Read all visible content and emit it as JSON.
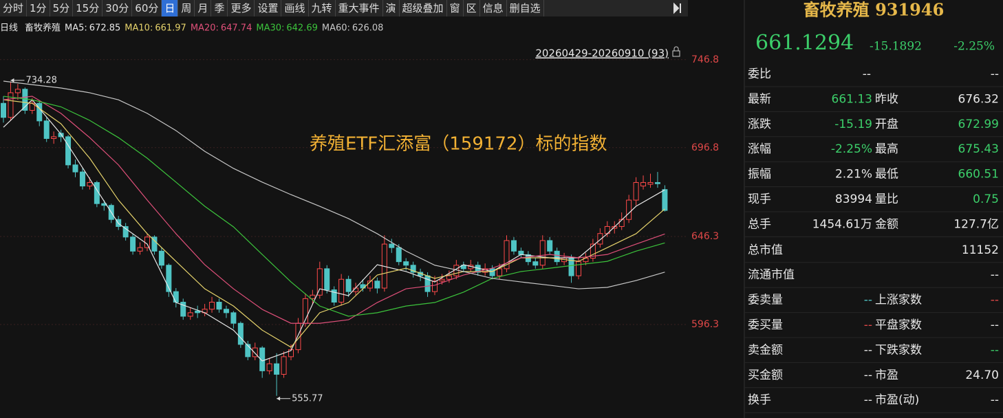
{
  "toolbar": [
    "分时",
    "1分",
    "5分",
    "15分",
    "30分",
    "60分",
    "日",
    "周",
    "月",
    "季",
    "更多",
    "设置",
    "画线",
    "九转",
    "重大事件",
    "演",
    "超级叠加",
    "窗",
    "区",
    "信息",
    "删自选"
  ],
  "legend": {
    "period": "日线",
    "name": "畜牧养殖"
  },
  "chart_data": {
    "type": "candlestick",
    "title": "养殖ETF汇添富（159172）标的指数",
    "range": "20260429-20260910 (93)",
    "ylim": [
      546.3,
      764.3
    ],
    "yticks": [
      596.3,
      646.3,
      696.8,
      746.8
    ],
    "max_label": 734.28,
    "min_label": 555.77,
    "ohlc": [
      [
        722,
        726,
        711,
        714
      ],
      [
        714,
        734.28,
        712,
        728
      ],
      [
        728,
        733,
        724,
        730
      ],
      [
        730,
        731,
        716,
        718
      ],
      [
        718,
        725,
        716,
        722
      ],
      [
        722,
        723,
        709,
        712
      ],
      [
        712,
        714,
        700,
        702
      ],
      [
        702,
        706,
        699,
        703
      ],
      [
        705,
        707,
        700,
        703
      ],
      [
        703,
        704,
        685,
        687
      ],
      [
        687,
        690,
        680,
        683
      ],
      [
        683,
        685,
        673,
        675
      ],
      [
        675,
        680,
        673,
        677
      ],
      [
        677,
        678,
        663,
        665
      ],
      [
        665,
        667,
        661,
        664
      ],
      [
        664,
        665,
        654,
        656
      ],
      [
        656,
        658,
        650,
        652
      ],
      [
        652,
        654,
        644,
        646
      ],
      [
        646,
        648,
        636,
        638
      ],
      [
        638,
        643,
        636,
        640
      ],
      [
        640,
        648,
        638,
        646
      ],
      [
        646,
        647,
        636,
        638
      ],
      [
        638,
        640,
        628,
        630
      ],
      [
        630,
        631,
        612,
        615
      ],
      [
        615,
        617,
        606,
        609
      ],
      [
        609,
        611,
        599,
        601
      ],
      [
        601,
        606,
        599,
        603
      ],
      [
        604,
        607,
        600,
        603
      ],
      [
        603,
        608,
        601,
        605
      ],
      [
        605,
        612,
        603,
        609
      ],
      [
        609,
        611,
        603,
        605
      ],
      [
        605,
        607,
        600,
        603
      ],
      [
        603,
        604,
        594,
        597
      ],
      [
        597,
        598,
        583,
        585
      ],
      [
        585,
        587,
        576,
        578
      ],
      [
        578,
        586,
        576,
        583
      ],
      [
        583,
        584,
        566,
        570
      ],
      [
        570,
        577,
        568,
        574
      ],
      [
        574,
        580,
        555.77,
        568
      ],
      [
        568,
        581,
        566,
        578
      ],
      [
        578,
        585,
        576,
        582
      ],
      [
        582,
        600,
        580,
        597
      ],
      [
        597,
        614,
        595,
        611
      ],
      [
        611,
        616,
        608,
        613
      ],
      [
        613,
        632,
        611,
        628
      ],
      [
        628,
        630,
        614,
        616
      ],
      [
        616,
        618,
        607,
        609
      ],
      [
        609,
        625,
        607,
        622
      ],
      [
        622,
        624,
        612,
        615
      ],
      [
        615,
        620,
        613,
        617
      ],
      [
        619,
        622,
        615,
        617
      ],
      [
        617,
        624,
        615,
        621
      ],
      [
        621,
        623,
        614,
        617
      ],
      [
        617,
        647,
        615,
        642
      ],
      [
        642,
        645,
        637,
        640
      ],
      [
        640,
        642,
        630,
        632
      ],
      [
        632,
        634,
        627,
        630
      ],
      [
        630,
        632,
        623,
        626
      ],
      [
        626,
        628,
        621,
        624
      ],
      [
        624,
        626,
        612,
        615
      ],
      [
        615,
        624,
        613,
        621
      ],
      [
        621,
        625,
        619,
        622
      ],
      [
        622,
        627,
        620,
        624
      ],
      [
        624,
        633,
        622,
        630
      ],
      [
        630,
        632,
        626,
        628
      ],
      [
        628,
        633,
        626,
        630
      ],
      [
        630,
        632,
        624,
        626
      ],
      [
        626,
        631,
        624,
        628
      ],
      [
        628,
        630,
        622,
        624
      ],
      [
        624,
        631,
        622,
        628
      ],
      [
        628,
        647,
        626,
        644
      ],
      [
        644,
        646,
        636,
        638
      ],
      [
        638,
        640,
        634,
        636
      ],
      [
        636,
        638,
        630,
        632
      ],
      [
        632,
        634,
        628,
        630
      ],
      [
        630,
        647,
        628,
        644
      ],
      [
        644,
        646,
        636,
        638
      ],
      [
        638,
        640,
        630,
        632
      ],
      [
        632,
        637,
        630,
        634
      ],
      [
        634,
        636,
        620,
        624
      ],
      [
        624,
        635,
        622,
        632
      ],
      [
        632,
        637,
        630,
        634
      ],
      [
        634,
        645,
        632,
        642
      ],
      [
        642,
        651,
        640,
        648
      ],
      [
        648,
        655,
        646,
        652
      ],
      [
        651,
        655,
        648,
        652
      ],
      [
        652,
        660,
        650,
        656
      ],
      [
        656,
        670,
        654,
        667
      ],
      [
        667,
        680,
        664,
        677
      ],
      [
        675,
        681,
        673,
        677
      ],
      [
        676,
        682,
        674,
        677
      ],
      [
        677,
        683,
        674,
        676.32
      ],
      [
        672.99,
        675.43,
        660.51,
        661.13
      ]
    ],
    "x": [
      0,
      4,
      8,
      12,
      16,
      20,
      24,
      28,
      32,
      36,
      40,
      44,
      48,
      52,
      56,
      60,
      64,
      68,
      72,
      76,
      80,
      84,
      88,
      92
    ],
    "series": [
      {
        "name": "MA5:",
        "color": "#e8e8e8",
        "last": 672.85,
        "values": [
          708.4,
          724,
          704.5,
          679.1,
          653.7,
          642,
          608.8,
          603,
          593.1,
          575.6,
          581.5,
          616.6,
          612.7,
          630.3,
          626.4,
          620.5,
          630.3,
          626.4,
          636.1,
          634.2,
          634.2,
          647.9,
          663.5,
          672.85
        ]
      },
      {
        "name": "MA10:",
        "color": "#e6d36c",
        "last": 661.97,
        "values": [
          724,
          722,
          710.4,
          690.8,
          667,
          647.9,
          632.2,
          616.6,
          606.8,
          593.1,
          583.4,
          603,
          608.8,
          624.4,
          628.3,
          622.5,
          626.4,
          626.4,
          634.2,
          634.2,
          632.2,
          640,
          647.9,
          661.97
        ]
      },
      {
        "name": "MA20:",
        "color": "#e0507a",
        "last": 647.74,
        "values": [
          724,
          726,
          716.3,
          702.5,
          687,
          667,
          647.9,
          630.3,
          616.6,
          604.9,
          597,
          597,
          599,
          608.8,
          616.6,
          618.6,
          624.4,
          628.3,
          634.2,
          636.1,
          634.2,
          636.1,
          642,
          647.74
        ]
      },
      {
        "name": "MA30:",
        "color": "#3cc43c",
        "last": 642.69,
        "values": [
          726,
          724,
          720,
          712.3,
          702.5,
          690.8,
          677.2,
          663.5,
          651.8,
          636.1,
          620.5,
          606.8,
          601,
          603,
          606.8,
          608.8,
          614.7,
          622.5,
          626.4,
          628.3,
          630.3,
          632.2,
          638,
          642.69
        ]
      },
      {
        "name": "MA60:",
        "color": "#c8c8c8",
        "last": 626.08,
        "values": [
          734.6,
          732.6,
          730.7,
          728,
          724,
          716.3,
          706.5,
          694.7,
          685,
          677.2,
          670.1,
          663.5,
          656.5,
          647.9,
          638,
          630,
          626.4,
          622.5,
          620.5,
          618.6,
          616.6,
          617.4,
          621.3,
          626.08
        ]
      }
    ]
  },
  "panel": {
    "title": "畜牧养殖 931946",
    "price": "661.1294",
    "change": "-15.1892",
    "pct": "-2.25%",
    "rows": [
      [
        "委比",
        "--",
        "--"
      ],
      [
        "最新",
        "661.13",
        "昨收",
        "676.32"
      ],
      [
        "涨跌",
        "-15.19",
        "开盘",
        "672.99"
      ],
      [
        "涨幅",
        "-2.25%",
        "最高",
        "675.43"
      ],
      [
        "振幅",
        "2.21%",
        "最低",
        "660.51"
      ],
      [
        "现手",
        "83994",
        "量比",
        "0.75"
      ],
      [
        "总手",
        "1454.61万",
        "金额",
        "127.7亿"
      ],
      [
        "总市值",
        "11152"
      ],
      [
        "流通市值",
        "--"
      ],
      [
        "委卖量",
        "--",
        "上涨家数",
        "--"
      ],
      [
        "委买量",
        "--",
        "平盘家数",
        "--"
      ],
      [
        "卖金额",
        "--",
        "下跌家数",
        "--"
      ],
      [
        "买金额",
        "--",
        "市盈",
        "24.70"
      ],
      [
        "换手",
        "--",
        "市盈(动)",
        "--"
      ]
    ]
  }
}
